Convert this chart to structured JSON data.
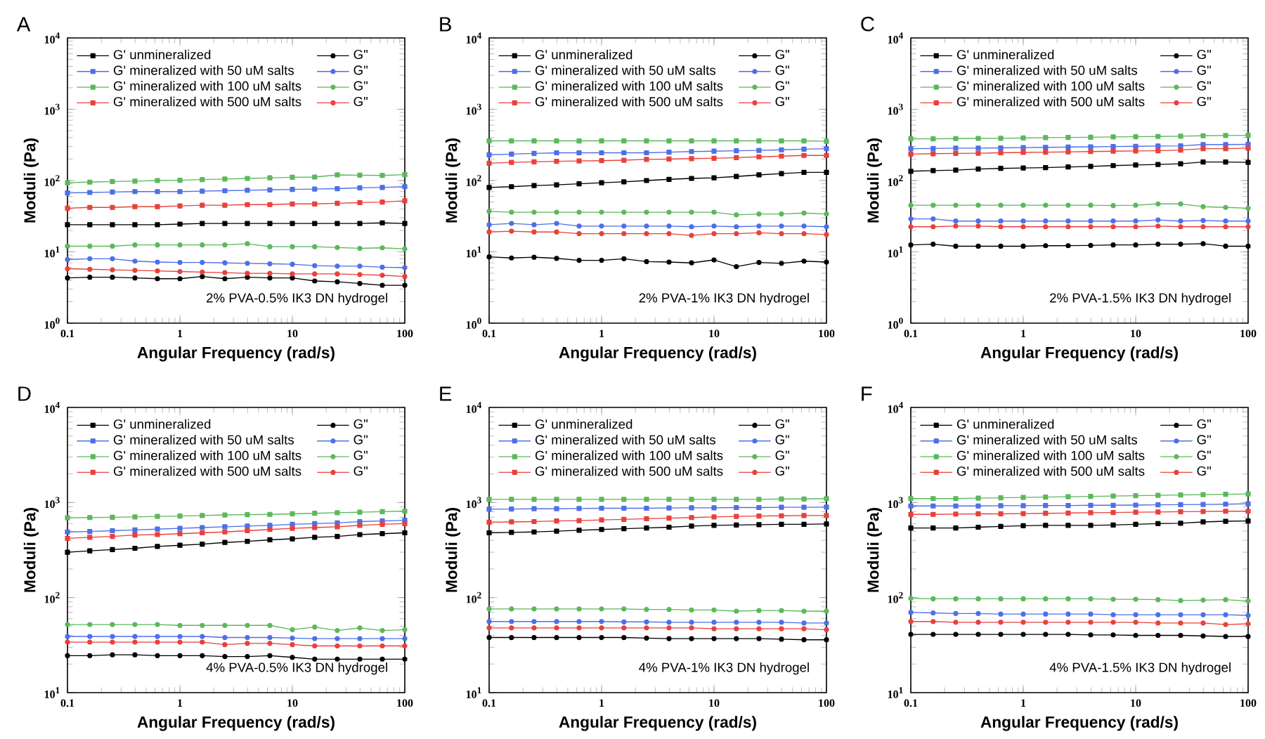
{
  "chart_data": [
    {
      "type": "line",
      "title": "A",
      "xlabel": "Angular Frequency (rad/s)",
      "ylabel": "Moduli (Pa)",
      "annotations": [
        "2% PVA-0.5% IK3 DN hydrogel"
      ],
      "log": "xy",
      "legend": "top left",
      "xlim": [
        0.1,
        100
      ],
      "ylim": [
        1,
        10000
      ],
      "xticks": [
        0.1,
        1,
        10,
        100
      ],
      "yticks": [
        {
          "value": 1,
          "label": "10$^{0}$"
        },
        {
          "value": 10,
          "label": "10$^{1}$"
        },
        {
          "value": 100,
          "label": "10$^{2}$"
        },
        {
          "value": 1000,
          "label": "10$^{3}$"
        },
        {
          "value": 10000,
          "label": "10$^{4}$"
        }
      ],
      "x": [
        0.1,
        0.158,
        0.251,
        0.398,
        0.631,
        1,
        1.58,
        2.51,
        3.98,
        6.31,
        10,
        15.8,
        25.1,
        39.8,
        63.1,
        100
      ],
      "series": [
        {
          "name": "G' unmineralized",
          "color": "#000000",
          "marker": "square",
          "values": [
            24,
            24,
            24,
            24,
            24,
            24.5,
            25,
            25,
            25,
            25,
            25,
            25,
            25,
            25,
            25.5,
            25
          ]
        },
        {
          "name": "G\"",
          "color": "#000000",
          "marker": "circle",
          "values": [
            4.3,
            4.4,
            4.4,
            4.3,
            4.2,
            4.2,
            4.5,
            4.2,
            4.4,
            4.3,
            4.3,
            3.9,
            3.8,
            3.6,
            3.4,
            3.4
          ]
        },
        {
          "name": "G' mineralized with 50 uM salts",
          "color": "#4f6fe8",
          "marker": "square",
          "values": [
            67,
            68,
            69,
            70,
            70,
            70,
            71,
            72,
            73,
            74,
            75,
            76,
            77,
            79,
            80,
            82
          ]
        },
        {
          "name": "G\"",
          "color": "#4f6fe8",
          "marker": "circle",
          "values": [
            7.8,
            8.0,
            8.0,
            7.4,
            7.2,
            7.1,
            7.1,
            7.0,
            6.9,
            6.8,
            6.7,
            6.4,
            6.3,
            6.3,
            6.1,
            6.0
          ]
        },
        {
          "name": "G' mineralized with 100 uM salts",
          "color": "#5cb85c",
          "marker": "square",
          "values": [
            93,
            95,
            97,
            98,
            100,
            101,
            103,
            105,
            107,
            109,
            111,
            112,
            120,
            119,
            118,
            121
          ]
        },
        {
          "name": "G\"",
          "color": "#5cb85c",
          "marker": "circle",
          "values": [
            12,
            12,
            12,
            12.5,
            12.5,
            12.5,
            12.5,
            12.5,
            13,
            11.8,
            11.8,
            11.8,
            11.5,
            11.2,
            11.4,
            11
          ]
        },
        {
          "name": "G' mineralized with 500 uM salts",
          "color": "#e8413c",
          "marker": "square",
          "values": [
            41,
            42,
            42,
            43,
            43,
            44,
            45,
            45,
            46,
            46,
            47,
            47,
            48,
            49,
            50,
            52
          ]
        },
        {
          "name": "G\"",
          "color": "#e8413c",
          "marker": "circle",
          "values": [
            5.8,
            5.7,
            5.6,
            5.5,
            5.4,
            5.3,
            5.2,
            5.1,
            5.0,
            5.0,
            4.9,
            4.9,
            4.9,
            4.8,
            4.7,
            4.5
          ]
        }
      ]
    },
    {
      "type": "line",
      "title": "B",
      "xlabel": "Angular Frequency (rad/s)",
      "ylabel": "Moduli (Pa)",
      "annotations": [
        "2% PVA-1% IK3 DN hydrogel"
      ],
      "log": "xy",
      "legend": "top left",
      "xlim": [
        0.1,
        100
      ],
      "ylim": [
        1,
        10000
      ],
      "xticks": [
        0.1,
        1,
        10,
        100
      ],
      "yticks": [
        {
          "value": 1,
          "label": "10$^{0}$"
        },
        {
          "value": 10,
          "label": "10$^{1}$"
        },
        {
          "value": 100,
          "label": "10$^{2}$"
        },
        {
          "value": 1000,
          "label": "10$^{3}$"
        },
        {
          "value": 10000,
          "label": "10$^{4}$"
        }
      ],
      "x": [
        0.1,
        0.158,
        0.251,
        0.398,
        0.631,
        1,
        1.58,
        2.51,
        3.98,
        6.31,
        10,
        15.8,
        25.1,
        39.8,
        63.1,
        100
      ],
      "series": [
        {
          "name": "G' unmineralized",
          "color": "#000000",
          "marker": "square",
          "values": [
            80,
            82,
            85,
            87,
            90,
            93,
            96,
            100,
            104,
            107,
            109,
            114,
            120,
            125,
            130,
            130
          ]
        },
        {
          "name": "G\"",
          "color": "#000000",
          "marker": "circle",
          "values": [
            8.5,
            8.2,
            8.4,
            8.1,
            7.6,
            7.6,
            8.0,
            7.3,
            7.2,
            7.0,
            7.7,
            6.2,
            7.1,
            6.9,
            7.4,
            7.2
          ]
        },
        {
          "name": "G' mineralized with 50 uM salts",
          "color": "#4f6fe8",
          "marker": "square",
          "values": [
            230,
            235,
            240,
            245,
            245,
            245,
            245,
            245,
            250,
            255,
            258,
            262,
            265,
            270,
            275,
            280
          ]
        },
        {
          "name": "G\"",
          "color": "#4f6fe8",
          "marker": "circle",
          "values": [
            24,
            25,
            24,
            25,
            23,
            23,
            23,
            23,
            23,
            22.5,
            23,
            22.5,
            23,
            23,
            23,
            22.5
          ]
        },
        {
          "name": "G' mineralized with 100 uM salts",
          "color": "#5cb85c",
          "marker": "square",
          "values": [
            360,
            360,
            360,
            360,
            360,
            360,
            360,
            360,
            360,
            360,
            360,
            360,
            360,
            360,
            360,
            355
          ]
        },
        {
          "name": "G\"",
          "color": "#5cb85c",
          "marker": "circle",
          "values": [
            37,
            36,
            36,
            36,
            36,
            36,
            36,
            36,
            36,
            36,
            36,
            33,
            34,
            34,
            35,
            34
          ]
        },
        {
          "name": "G' mineralized with 500 uM salts",
          "color": "#e8413c",
          "marker": "square",
          "values": [
            175,
            180,
            183,
            186,
            188,
            190,
            193,
            198,
            200,
            203,
            205,
            210,
            215,
            220,
            225,
            225
          ]
        },
        {
          "name": "G\"",
          "color": "#e8413c",
          "marker": "circle",
          "values": [
            19,
            19.5,
            19,
            19,
            18,
            18,
            18,
            18,
            18,
            17,
            18,
            18,
            18.5,
            18,
            18,
            17.5
          ]
        }
      ]
    },
    {
      "type": "line",
      "title": "C",
      "xlabel": "Angular Frequency (rad/s)",
      "ylabel": "Moduli (Pa)",
      "annotations": [
        "2% PVA-1.5% IK3 DN hydrogel"
      ],
      "log": "xy",
      "legend": "top left",
      "xlim": [
        0.1,
        100
      ],
      "ylim": [
        1,
        10000
      ],
      "xticks": [
        0.1,
        1,
        10,
        100
      ],
      "yticks": [
        {
          "value": 1,
          "label": "10$^{0}$"
        },
        {
          "value": 10,
          "label": "10$^{1}$"
        },
        {
          "value": 100,
          "label": "10$^{2}$"
        },
        {
          "value": 1000,
          "label": "10$^{3}$"
        },
        {
          "value": 10000,
          "label": "10$^{4}$"
        }
      ],
      "x": [
        0.1,
        0.158,
        0.251,
        0.398,
        0.631,
        1,
        1.58,
        2.51,
        3.98,
        6.31,
        10,
        15.8,
        25.1,
        39.8,
        63.1,
        100
      ],
      "series": [
        {
          "name": "G' unmineralized",
          "color": "#000000",
          "marker": "square",
          "values": [
            135,
            138,
            140,
            145,
            148,
            150,
            152,
            155,
            158,
            162,
            165,
            168,
            172,
            182,
            182,
            180
          ]
        },
        {
          "name": "G\"",
          "color": "#000000",
          "marker": "circle",
          "values": [
            12.5,
            12.8,
            12,
            12,
            12,
            12,
            12.2,
            12.2,
            12.3,
            12.5,
            12.5,
            12.8,
            12.8,
            13,
            12,
            12
          ]
        },
        {
          "name": "G' mineralized with 50 uM salts",
          "color": "#4f6fe8",
          "marker": "square",
          "values": [
            280,
            282,
            285,
            285,
            287,
            290,
            292,
            295,
            297,
            300,
            302,
            305,
            307,
            320,
            320,
            322
          ]
        },
        {
          "name": "G\"",
          "color": "#4f6fe8",
          "marker": "circle",
          "values": [
            29,
            29,
            27,
            27,
            27,
            27,
            27,
            27,
            27,
            27,
            27,
            28,
            27,
            27.5,
            27,
            27
          ]
        },
        {
          "name": "G' mineralized with 100 uM salts",
          "color": "#5cb85c",
          "marker": "square",
          "values": [
            385,
            385,
            388,
            390,
            392,
            395,
            400,
            402,
            405,
            410,
            412,
            415,
            418,
            425,
            428,
            430
          ]
        },
        {
          "name": "G\"",
          "color": "#5cb85c",
          "marker": "circle",
          "values": [
            45,
            45,
            45,
            45,
            45,
            45,
            45,
            45,
            45,
            44.5,
            45,
            47,
            47,
            43,
            42,
            41
          ]
        },
        {
          "name": "G' mineralized with 500 uM salts",
          "color": "#e8413c",
          "marker": "square",
          "values": [
            235,
            238,
            240,
            242,
            245,
            248,
            250,
            252,
            255,
            258,
            260,
            262,
            268,
            280,
            280,
            285
          ]
        },
        {
          "name": "G\"",
          "color": "#e8413c",
          "marker": "circle",
          "values": [
            22.5,
            22.5,
            23,
            23,
            22.5,
            22.5,
            22.5,
            22.5,
            22.5,
            22.5,
            22.5,
            23,
            22.5,
            22.5,
            22.5,
            22.5
          ]
        }
      ]
    },
    {
      "type": "line",
      "title": "D",
      "xlabel": "Angular Frequency (rad/s)",
      "ylabel": "Moduli (Pa)",
      "annotations": [
        "4% PVA-0.5% IK3 DN hydrogel"
      ],
      "log": "xy",
      "legend": "top left",
      "xlim": [
        0.1,
        100
      ],
      "ylim": [
        10,
        10000
      ],
      "xticks": [
        0.1,
        1,
        10,
        100
      ],
      "yticks": [
        {
          "value": 10,
          "label": "10$^{1}$"
        },
        {
          "value": 100,
          "label": "10$^{2}$"
        },
        {
          "value": 1000,
          "label": "10$^{3}$"
        },
        {
          "value": 10000,
          "label": "10$^{4}$"
        }
      ],
      "x": [
        0.1,
        0.158,
        0.251,
        0.398,
        0.631,
        1,
        1.58,
        2.51,
        3.98,
        6.31,
        10,
        15.8,
        25.1,
        39.8,
        63.1,
        100
      ],
      "series": [
        {
          "name": "G' unmineralized",
          "color": "#000000",
          "marker": "square",
          "values": [
            300,
            310,
            320,
            330,
            345,
            355,
            365,
            380,
            390,
            405,
            415,
            430,
            440,
            460,
            470,
            480
          ]
        },
        {
          "name": "G\"",
          "color": "#000000",
          "marker": "circle",
          "values": [
            24.5,
            24.5,
            25,
            25,
            24.5,
            24.5,
            24.5,
            24,
            24,
            24.5,
            23.5,
            22.5,
            22.5,
            22.5,
            22.5,
            22.5
          ]
        },
        {
          "name": "G' mineralized with 50 uM salts",
          "color": "#4f6fe8",
          "marker": "square",
          "values": [
            490,
            495,
            505,
            515,
            525,
            535,
            545,
            555,
            565,
            575,
            590,
            600,
            610,
            630,
            640,
            650
          ]
        },
        {
          "name": "G\"",
          "color": "#4f6fe8",
          "marker": "circle",
          "values": [
            39,
            39,
            39,
            39,
            39,
            39,
            39,
            38,
            38,
            38,
            37.5,
            37,
            37,
            37,
            37,
            37
          ]
        },
        {
          "name": "G' mineralized with 100 uM salts",
          "color": "#5cb85c",
          "marker": "square",
          "values": [
            690,
            695,
            700,
            705,
            715,
            720,
            730,
            740,
            745,
            750,
            760,
            770,
            780,
            790,
            800,
            810
          ]
        },
        {
          "name": "G\"",
          "color": "#5cb85c",
          "marker": "circle",
          "values": [
            52,
            52,
            52,
            52,
            52,
            51,
            51,
            51,
            51,
            51,
            46,
            49,
            45,
            48,
            45,
            46
          ]
        },
        {
          "name": "G' mineralized with 500 uM salts",
          "color": "#e8413c",
          "marker": "square",
          "values": [
            420,
            430,
            440,
            455,
            460,
            470,
            480,
            490,
            505,
            520,
            535,
            545,
            555,
            575,
            590,
            600
          ]
        },
        {
          "name": "G\"",
          "color": "#e8413c",
          "marker": "circle",
          "values": [
            34,
            34,
            34,
            34,
            34,
            34,
            34,
            32,
            33,
            33,
            32,
            31,
            31,
            31,
            31,
            31
          ]
        }
      ]
    },
    {
      "type": "line",
      "title": "E",
      "xlabel": "Angular Frequency (rad/s)",
      "ylabel": "Moduli (Pa)",
      "annotations": [
        "4% PVA-1% IK3 DN hydrogel"
      ],
      "log": "xy",
      "legend": "top left",
      "xlim": [
        0.1,
        100
      ],
      "ylim": [
        10,
        10000
      ],
      "xticks": [
        0.1,
        1,
        10,
        100
      ],
      "yticks": [
        {
          "value": 10,
          "label": "10$^{1}$"
        },
        {
          "value": 100,
          "label": "10$^{2}$"
        },
        {
          "value": 1000,
          "label": "10$^{3}$"
        },
        {
          "value": 10000,
          "label": "10$^{4}$"
        }
      ],
      "x": [
        0.1,
        0.158,
        0.251,
        0.398,
        0.631,
        1,
        1.58,
        2.51,
        3.98,
        6.31,
        10,
        15.8,
        25.1,
        39.8,
        63.1,
        100
      ],
      "series": [
        {
          "name": "G' unmineralized",
          "color": "#000000",
          "marker": "square",
          "values": [
            480,
            485,
            490,
            500,
            510,
            520,
            530,
            540,
            550,
            565,
            575,
            580,
            585,
            590,
            590,
            595
          ]
        },
        {
          "name": "G\"",
          "color": "#000000",
          "marker": "circle",
          "values": [
            38,
            38,
            38,
            38,
            38,
            38,
            38,
            37.5,
            37,
            37,
            37,
            37,
            37,
            36.5,
            36,
            36
          ]
        },
        {
          "name": "G' mineralized with 50 uM salts",
          "color": "#4f6fe8",
          "marker": "square",
          "values": [
            850,
            855,
            860,
            860,
            865,
            870,
            870,
            870,
            875,
            880,
            880,
            885,
            885,
            890,
            890,
            895
          ]
        },
        {
          "name": "G\"",
          "color": "#4f6fe8",
          "marker": "circle",
          "values": [
            56,
            56,
            56,
            56,
            56,
            56,
            55.5,
            55.5,
            55,
            55,
            55,
            55,
            55,
            55,
            54,
            54
          ]
        },
        {
          "name": "G' mineralized with 100 uM salts",
          "color": "#5cb85c",
          "marker": "square",
          "values": [
            1080,
            1080,
            1080,
            1080,
            1080,
            1080,
            1080,
            1080,
            1080,
            1080,
            1080,
            1080,
            1080,
            1090,
            1090,
            1100
          ]
        },
        {
          "name": "G\"",
          "color": "#5cb85c",
          "marker": "circle",
          "values": [
            76,
            76,
            76,
            76,
            76,
            76,
            76,
            75,
            75,
            74,
            74,
            72,
            73,
            73,
            72,
            72
          ]
        },
        {
          "name": "G' mineralized with 500 uM salts",
          "color": "#e8413c",
          "marker": "square",
          "values": [
            620,
            625,
            630,
            640,
            645,
            655,
            665,
            675,
            685,
            695,
            705,
            715,
            720,
            725,
            730,
            730
          ]
        },
        {
          "name": "G\"",
          "color": "#e8413c",
          "marker": "circle",
          "values": [
            48,
            48,
            48,
            48,
            48,
            48,
            48,
            48,
            48,
            48,
            47,
            47,
            47,
            47,
            47,
            46
          ]
        }
      ]
    },
    {
      "type": "line",
      "title": "F",
      "xlabel": "Angular Frequency (rad/s)",
      "ylabel": "Moduli (Pa)",
      "annotations": [
        "4% PVA-1.5% IK3 DN hydrogel"
      ],
      "log": "xy",
      "legend": "top left",
      "xlim": [
        0.1,
        100
      ],
      "ylim": [
        10,
        10000
      ],
      "xticks": [
        0.1,
        1,
        10,
        100
      ],
      "yticks": [
        {
          "value": 10,
          "label": "10$^{1}$"
        },
        {
          "value": 100,
          "label": "10$^{2}$"
        },
        {
          "value": 1000,
          "label": "10$^{3}$"
        },
        {
          "value": 10000,
          "label": "10$^{4}$"
        }
      ],
      "x": [
        0.1,
        0.158,
        0.251,
        0.398,
        0.631,
        1,
        1.58,
        2.51,
        3.98,
        6.31,
        10,
        15.8,
        25.1,
        39.8,
        63.1,
        100
      ],
      "series": [
        {
          "name": "G' unmineralized",
          "color": "#000000",
          "marker": "square",
          "values": [
            540,
            540,
            540,
            550,
            560,
            570,
            575,
            575,
            575,
            580,
            590,
            600,
            605,
            625,
            635,
            640
          ]
        },
        {
          "name": "G\"",
          "color": "#000000",
          "marker": "circle",
          "values": [
            41,
            41,
            41,
            41,
            41,
            41,
            41,
            41,
            40.5,
            40.5,
            40,
            40,
            40,
            39.5,
            39,
            39
          ]
        },
        {
          "name": "G' mineralized with 50 uM salts",
          "color": "#4f6fe8",
          "marker": "square",
          "values": [
            920,
            920,
            920,
            920,
            925,
            925,
            930,
            930,
            935,
            935,
            940,
            945,
            950,
            955,
            960,
            970
          ]
        },
        {
          "name": "G\"",
          "color": "#4f6fe8",
          "marker": "circle",
          "values": [
            70,
            69,
            68,
            68,
            67,
            67,
            67,
            67,
            67,
            66,
            66,
            66,
            66,
            66,
            66,
            65
          ]
        },
        {
          "name": "G' mineralized with 100 uM salts",
          "color": "#5cb85c",
          "marker": "square",
          "values": [
            1100,
            1100,
            1100,
            1110,
            1120,
            1130,
            1140,
            1150,
            1160,
            1170,
            1180,
            1190,
            1200,
            1210,
            1220,
            1230
          ]
        },
        {
          "name": "G\"",
          "color": "#5cb85c",
          "marker": "circle",
          "values": [
            98,
            97,
            97,
            97,
            97,
            97,
            97,
            97,
            97,
            96,
            96,
            95,
            93,
            94,
            95,
            92
          ]
        },
        {
          "name": "G' mineralized with 500 uM salts",
          "color": "#e8413c",
          "marker": "square",
          "values": [
            750,
            750,
            755,
            760,
            760,
            765,
            770,
            775,
            780,
            785,
            790,
            795,
            800,
            805,
            810,
            810
          ]
        },
        {
          "name": "G\"",
          "color": "#e8413c",
          "marker": "circle",
          "values": [
            56,
            56,
            55,
            55,
            55,
            55,
            55,
            55,
            55,
            55,
            55,
            54,
            54,
            54,
            52,
            53
          ]
        }
      ]
    }
  ]
}
